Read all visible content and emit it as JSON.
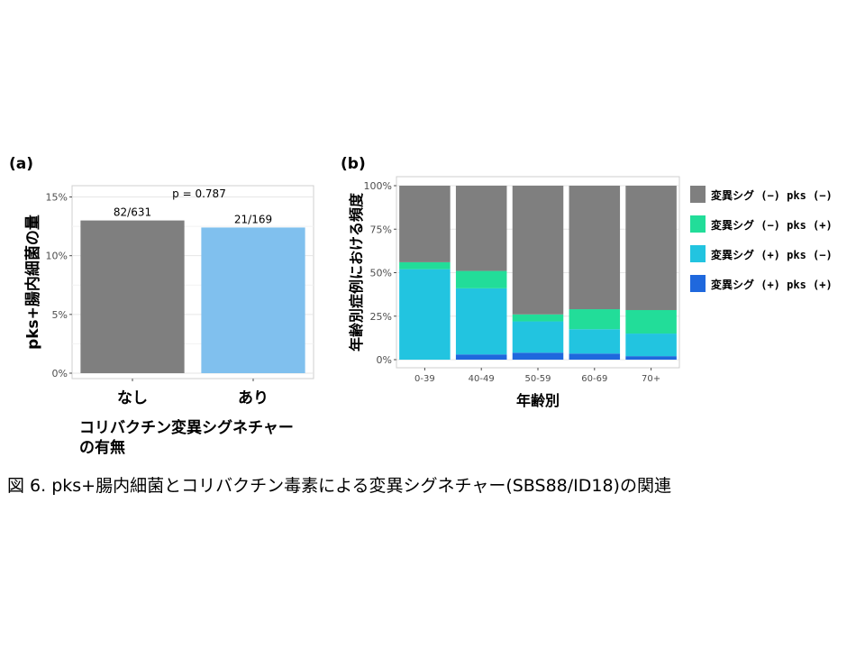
{
  "caption": "図 6. pks+腸内細菌とコリバクチン毒素による変異シグネチャー(SBS88/ID18)の関連",
  "chart_data": [
    {
      "panel": "(a)",
      "type": "bar",
      "categories": [
        "なし",
        "あり"
      ],
      "values": [
        13.0,
        12.4
      ],
      "bar_labels": [
        "82/631",
        "21/169"
      ],
      "annotation": "p = 0.787",
      "ylabel": "pks+腸内細菌の量",
      "xlabel_lines": [
        "コリバクチン変異シグネチャー",
        "の有無"
      ],
      "ylim": [
        0,
        15.5
      ],
      "yticks": [
        0,
        5,
        10,
        15
      ],
      "ytick_labels": [
        "0%",
        "5%",
        "10%",
        "15%"
      ],
      "grid": true,
      "colors": [
        "#7f7f7f",
        "#80c0ee"
      ]
    },
    {
      "panel": "(b)",
      "type": "stacked_bar",
      "categories": [
        "0-39",
        "40-49",
        "50-59",
        "60-69",
        "70+"
      ],
      "series": [
        {
          "name": "変異シグ (+) pks (+)",
          "color": "#1f68dd",
          "values": [
            0,
            3,
            4,
            3.5,
            2
          ]
        },
        {
          "name": "変異シグ (+) pks (−)",
          "color": "#22c4e0",
          "values": [
            52,
            38,
            18,
            14,
            13
          ]
        },
        {
          "name": "変異シグ (−) pks (+)",
          "color": "#22dd99",
          "values": [
            4,
            10,
            4,
            11.5,
            13.5
          ]
        },
        {
          "name": "変異シグ (−) pks (−)",
          "color": "#7f7f7f",
          "values": [
            44,
            49,
            74,
            71,
            71.5
          ]
        }
      ],
      "legend_order": [
        "変異シグ (−) pks (−)",
        "変異シグ (−) pks (+)",
        "変異シグ (+) pks (−)",
        "変異シグ (+) pks (+)"
      ],
      "ylabel": "年齢別症例における頻度",
      "xlabel": "年齢別",
      "ylim": [
        0,
        100
      ],
      "yticks": [
        0,
        25,
        50,
        75,
        100
      ],
      "ytick_labels": [
        "0%",
        "25%",
        "50%",
        "75%",
        "100%"
      ],
      "legend_position": "right",
      "grid": true
    }
  ]
}
